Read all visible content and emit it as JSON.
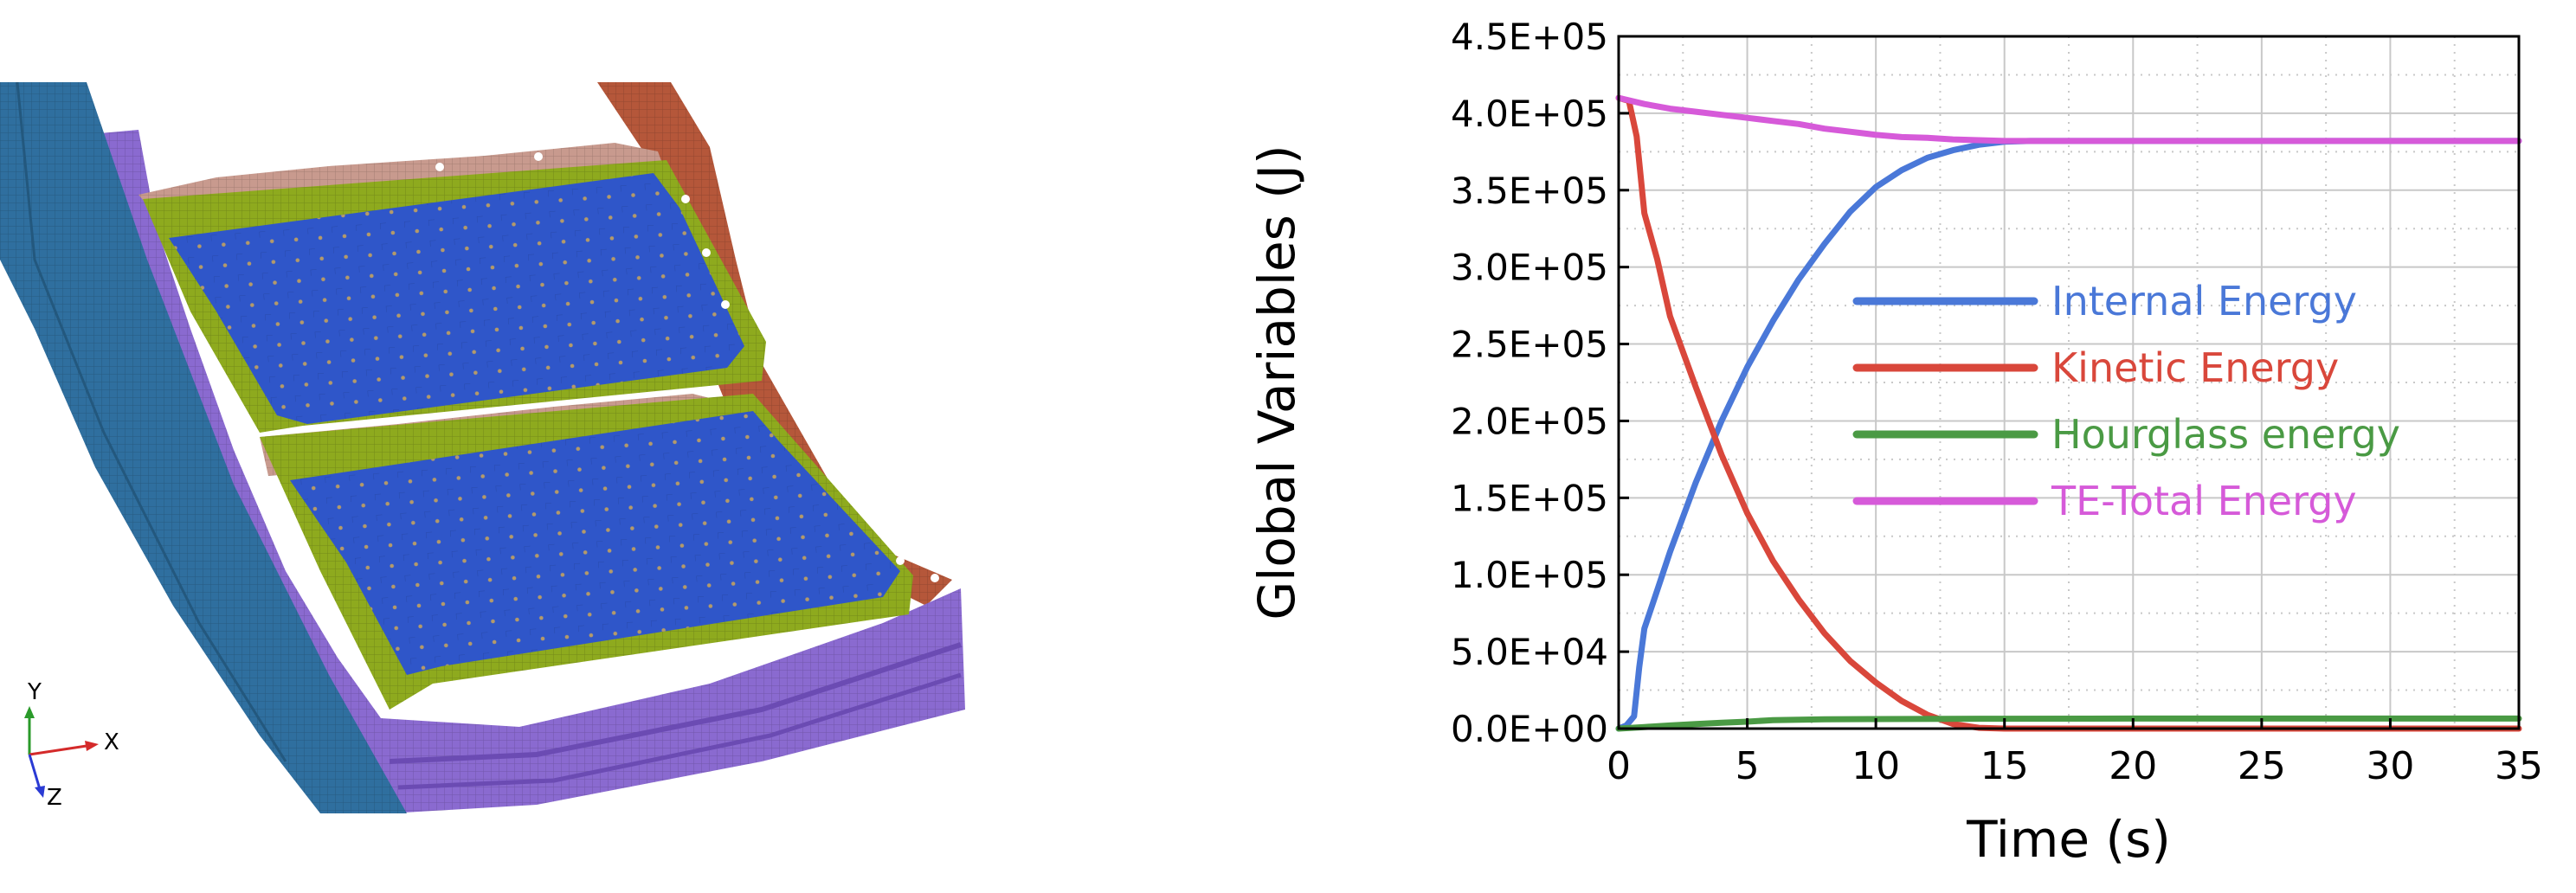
{
  "model_view": {
    "triad_labels": {
      "y": "Y",
      "x": "X",
      "z": "Z"
    },
    "colors": {
      "rail": "#2f6f9f",
      "frame": "#b5573a",
      "plate": "#8a6ad0",
      "mat": "#2f56c9",
      "border": "#8eaa1e",
      "flange": "#c89a8e"
    }
  },
  "chart_data": {
    "type": "line",
    "title": "",
    "xlabel": "Time (s)",
    "ylabel": "Global Variables (J)",
    "xlim": [
      0,
      35
    ],
    "ylim": [
      0,
      450000
    ],
    "x_ticks": [
      0,
      5,
      10,
      15,
      20,
      25,
      30,
      35
    ],
    "y_ticks": [
      0,
      50000,
      100000,
      150000,
      200000,
      250000,
      300000,
      350000,
      400000,
      450000
    ],
    "x_tick_labels": [
      "0",
      "5",
      "10",
      "15",
      "20",
      "25",
      "30",
      "35"
    ],
    "y_tick_labels": [
      "0.0E+00",
      "5.0E+04",
      "1.0E+05",
      "1.5E+05",
      "2.0E+05",
      "2.5E+05",
      "3.0E+05",
      "3.5E+05",
      "4.0E+05",
      "4.5E+05"
    ],
    "grid": true,
    "legend_position": "center-right",
    "series": [
      {
        "name": "Internal Energy",
        "color": "#4a78d8",
        "x": [
          0,
          0.3,
          0.6,
          0.8,
          1,
          1.5,
          2,
          3,
          4,
          5,
          6,
          7,
          8,
          9,
          10,
          11,
          12,
          13,
          14,
          15,
          16,
          20,
          25,
          30,
          35
        ],
        "y": [
          0,
          2000,
          8000,
          40000,
          65000,
          90000,
          115000,
          160000,
          200000,
          235000,
          265000,
          292000,
          315000,
          336000,
          352000,
          363000,
          371000,
          376000,
          379500,
          381500,
          382000,
          382000,
          382000,
          382000,
          382000
        ]
      },
      {
        "name": "Kinetic Energy",
        "color": "#d9473b",
        "x": [
          0,
          0.4,
          0.7,
          1,
          1.5,
          2,
          3,
          4,
          5,
          6,
          7,
          8,
          9,
          10,
          11,
          12,
          13,
          14,
          15,
          20,
          25,
          30,
          35
        ],
        "y": [
          410000,
          408000,
          385000,
          335000,
          305000,
          268000,
          222000,
          178000,
          140000,
          109000,
          84000,
          62000,
          44000,
          30000,
          18000,
          9000,
          3000,
          500,
          0,
          0,
          0,
          0,
          0
        ]
      },
      {
        "name": "Hourglass energy",
        "color": "#4a9a44",
        "x": [
          0,
          1,
          2,
          3,
          4,
          5,
          6,
          8,
          10,
          15,
          20,
          25,
          30,
          35
        ],
        "y": [
          0,
          1000,
          2000,
          3000,
          3800,
          4500,
          5500,
          6000,
          6200,
          6400,
          6500,
          6500,
          6500,
          6500
        ]
      },
      {
        "name": "TE-Total Energy",
        "color": "#d65ad9",
        "x": [
          0,
          1,
          2,
          3,
          4,
          5,
          6,
          7,
          8,
          9,
          10,
          11,
          12,
          13,
          14,
          15,
          20,
          25,
          30,
          35
        ],
        "y": [
          410000,
          406000,
          403000,
          401000,
          399000,
          397000,
          395000,
          393000,
          390000,
          388000,
          386000,
          384500,
          384000,
          383000,
          382500,
          382000,
          382000,
          382000,
          382000,
          382000
        ]
      }
    ]
  }
}
